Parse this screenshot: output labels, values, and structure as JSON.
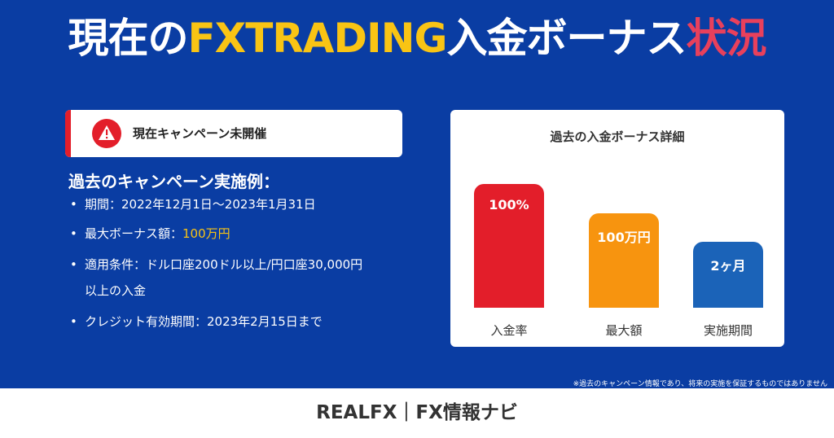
{
  "headline": {
    "part1": "現在の",
    "part2": "FXTRADING",
    "part3": "入金ボーナス",
    "part4": "状況"
  },
  "notice": {
    "icon": "warning-icon",
    "text": "現在キャンペーン未開催",
    "accent_color": "#E31E2A"
  },
  "examples": {
    "title": "過去のキャンペーン実施例：",
    "bullet": "•",
    "period": "期間：2022年12月1日～2023年1月31日",
    "max_bonus_label": "最大ボーナス額：",
    "max_bonus_value": "100万円",
    "conditions_line1": "適用条件：ドル口座200ドル以上/円口座30,000円",
    "conditions_line2": "以上の入金",
    "credit_validity": "クレジット有効期間：2023年2月15日まで"
  },
  "chart_data": {
    "type": "bar",
    "title": "過去の入金ボーナス詳細",
    "categories": [
      "入金率",
      "最大額",
      "実施期間"
    ],
    "data_labels": [
      "100%",
      "100万円",
      "2ヶ月"
    ],
    "relative_heights": [
      1.0,
      0.76,
      0.53
    ],
    "colors": [
      "#E31E2A",
      "#F7940F",
      "#1B63B8"
    ]
  },
  "disclaimer": "※過去のキャンペーン情報であり、将来の実施を保証するものではありません",
  "footer": {
    "text": "REALFX｜FX情報ナビ"
  },
  "colors": {
    "background": "#0A3DA3",
    "brand_yellow": "#F9C414",
    "accent_red": "#E8405C"
  }
}
